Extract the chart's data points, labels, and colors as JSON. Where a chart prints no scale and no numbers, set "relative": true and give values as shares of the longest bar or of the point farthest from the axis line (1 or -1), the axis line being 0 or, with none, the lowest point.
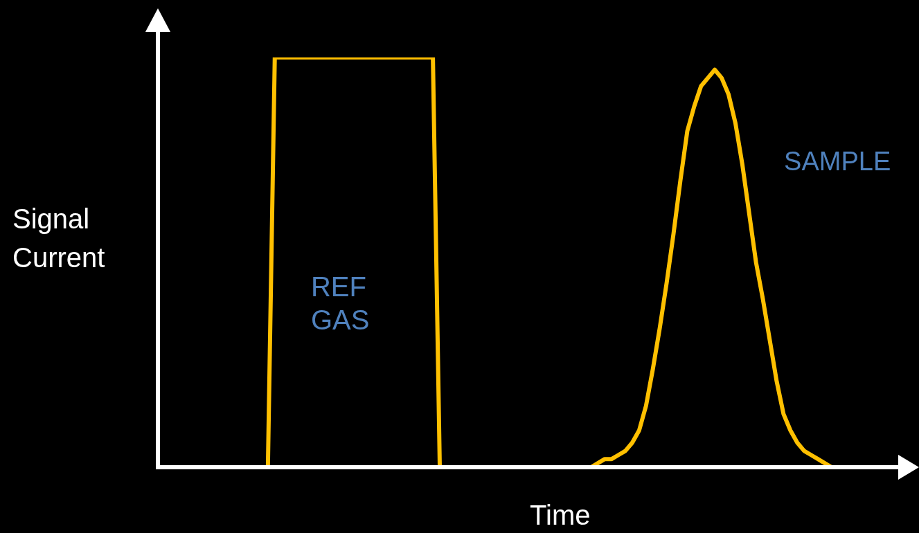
{
  "chart_data": {
    "type": "line",
    "relative": true,
    "xlabel": "Time",
    "ylabel": "Signal Current",
    "marker": "none",
    "categories": [
      null,
      null,
      null,
      null,
      null,
      null,
      null,
      null,
      null,
      null,
      null,
      null,
      null,
      null,
      null,
      null,
      null,
      null,
      null,
      null,
      null,
      null,
      null,
      null,
      null,
      null,
      null,
      null,
      null,
      null,
      null,
      null,
      null,
      null,
      null,
      null,
      null,
      null,
      null,
      null,
      null,
      null,
      null,
      null,
      null,
      null,
      null,
      null,
      null,
      null,
      null,
      null,
      null,
      null,
      null,
      null,
      null,
      null,
      null,
      null,
      null,
      null,
      null,
      null,
      null,
      null,
      null,
      null,
      null,
      null,
      null,
      null,
      null,
      null,
      null,
      null,
      null,
      null,
      null,
      null,
      null,
      null,
      null,
      null,
      null,
      null,
      null,
      null,
      null,
      null,
      null,
      null,
      null,
      null,
      null,
      null,
      null,
      null,
      null,
      null,
      null,
      null,
      null,
      null,
      null,
      null,
      null,
      null,
      null,
      null,
      null
    ],
    "series": [
      {
        "name": "REF GAS",
        "color": "#ffc000",
        "values": [
          null,
          null,
          null,
          null,
          null,
          null,
          null,
          null,
          null,
          null,
          null,
          null,
          null,
          null,
          null,
          null,
          0,
          1,
          1,
          1,
          1,
          1,
          1,
          1,
          1,
          1,
          1,
          1,
          1,
          1,
          1,
          1,
          1,
          1,
          1,
          1,
          1,
          1,
          1,
          1,
          1,
          0,
          null,
          null,
          null,
          null,
          null,
          null,
          null,
          null,
          null,
          null,
          null,
          null,
          null,
          null,
          null,
          null,
          null,
          null,
          null,
          null,
          null,
          null,
          null,
          null,
          null,
          null,
          null,
          null,
          null,
          null,
          null,
          null,
          null,
          null,
          null,
          null,
          null,
          null,
          null,
          null,
          null,
          null,
          null,
          null,
          null,
          null,
          null,
          null,
          null,
          null,
          null,
          null,
          null,
          null,
          null,
          null,
          null,
          null,
          null,
          null,
          null,
          null,
          null,
          null,
          null,
          null,
          null,
          null,
          null
        ]
      },
      {
        "name": "SAMPLE",
        "color": "#ffc000",
        "values": [
          null,
          null,
          null,
          null,
          null,
          null,
          null,
          null,
          null,
          null,
          null,
          null,
          null,
          null,
          null,
          null,
          null,
          null,
          null,
          null,
          null,
          null,
          null,
          null,
          null,
          null,
          null,
          null,
          null,
          null,
          null,
          null,
          null,
          null,
          null,
          null,
          null,
          null,
          null,
          null,
          null,
          null,
          null,
          null,
          null,
          null,
          null,
          null,
          null,
          null,
          null,
          null,
          null,
          null,
          null,
          null,
          null,
          null,
          null,
          null,
          null,
          null,
          null,
          0,
          0.01,
          0.02,
          0.02,
          0.03,
          0.04,
          0.06,
          0.09,
          0.15,
          0.24,
          0.34,
          0.45,
          0.57,
          0.7,
          0.82,
          0.88,
          0.93,
          0.95,
          0.97,
          0.95,
          0.91,
          0.84,
          0.74,
          0.62,
          0.5,
          0.41,
          0.31,
          0.21,
          0.13,
          0.09,
          0.06,
          0.04,
          0.03,
          0.02,
          0.01,
          0,
          null,
          null,
          null,
          null,
          null,
          null,
          null,
          null,
          null,
          null,
          null,
          null
        ]
      }
    ]
  }
}
